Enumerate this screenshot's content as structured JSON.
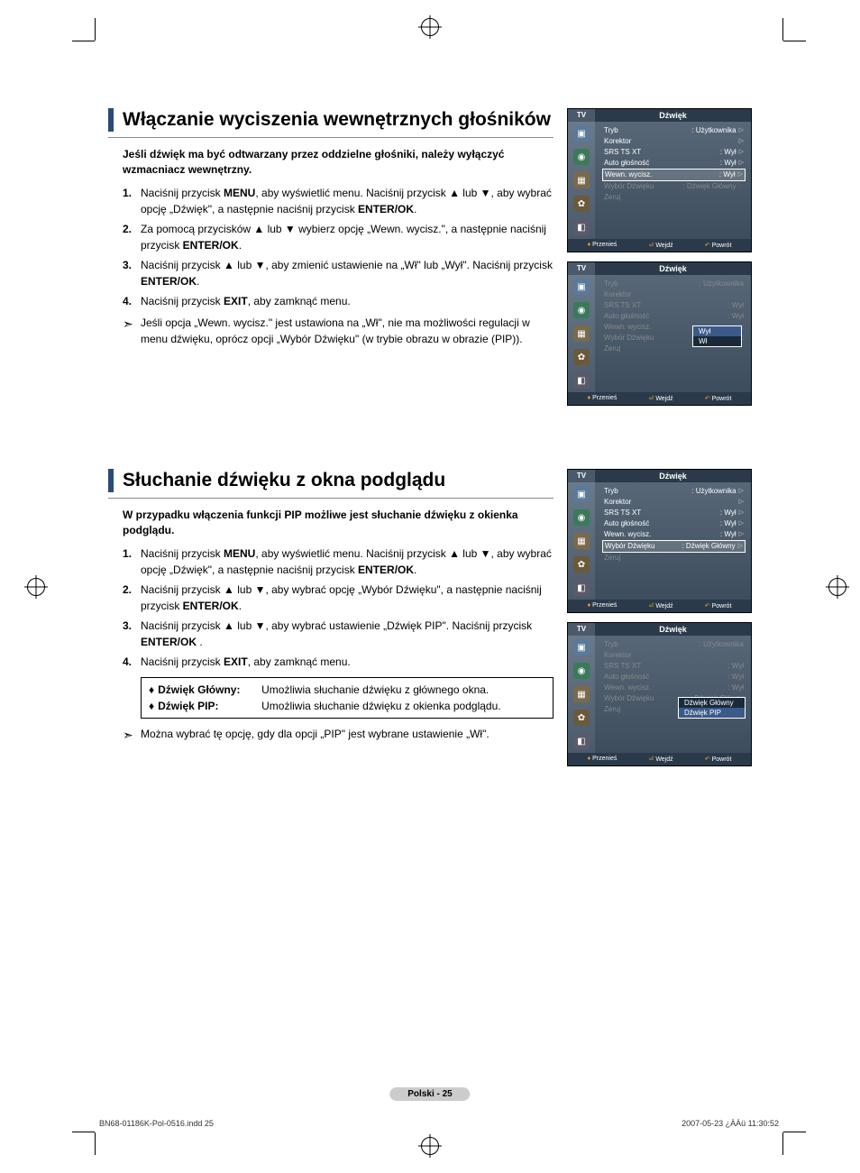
{
  "section1": {
    "heading": "Włączanie wyciszenia wewnętrznych głośników",
    "intro": "Jeśli dźwięk ma być odtwarzany przez oddzielne głośniki, należy wyłączyć wzmacniacz wewnętrzny.",
    "steps": [
      "Naciśnij przycisk <b>MENU</b>, aby wyświetlić menu. Naciśnij przycisk ▲ lub ▼, aby wybrać opcję „Dźwięk\", a następnie naciśnij przycisk <b>ENTER/OK</b>.",
      "Za pomocą przycisków ▲ lub ▼ wybierz opcję „Wewn. wycisz.\", a następnie naciśnij przycisk <b>ENTER/OK</b>.",
      "Naciśnij przycisk ▲ lub ▼, aby zmienić ustawienie na „Wł\" lub „Wył\". Naciśnij przycisk <b>ENTER/OK</b>.",
      "Naciśnij przycisk <b>EXIT</b>, aby zamknąć menu."
    ],
    "note": "Jeśli opcja „Wewn. wycisz.\" jest ustawiona na „Wł\", nie ma możliwości regulacji w menu dźwięku, oprócz opcji „Wybór Dźwięku\" (w trybie obrazu w obrazie (PIP))."
  },
  "section2": {
    "heading": "Słuchanie dźwięku z okna podglądu",
    "intro": "W przypadku włączenia funkcji PIP możliwe jest słuchanie dźwięku z okienka podglądu.",
    "steps": [
      "Naciśnij przycisk <b>MENU</b>, aby wyświetlić menu. Naciśnij przycisk ▲ lub ▼, aby wybrać opcję „Dźwięk\", a następnie naciśnij przycisk <b>ENTER/OK</b>.",
      "Naciśnij przycisk ▲ lub ▼, aby wybrać opcję „Wybór Dźwięku\", a następnie naciśnij przycisk <b>ENTER/OK</b>.",
      "Naciśnij przycisk ▲ lub ▼, aby wybrać ustawienie „Dźwięk PIP\". Naciśnij przycisk <b>ENTER/OK</b> .",
      "Naciśnij przycisk <b>EXIT</b>, aby zamknąć menu."
    ],
    "defs": [
      {
        "label": "Dźwięk Główny:",
        "text": "Umożliwia słuchanie dźwięku z głównego okna."
      },
      {
        "label": "Dźwięk PIP:",
        "text": "Umożliwia słuchanie dźwięku z okienka podglądu."
      }
    ],
    "note": "Można wybrać tę opcję, gdy dla opcji „PIP\" jest wybrane ustawienie „Wł\"."
  },
  "osd": {
    "tv": "TV",
    "title": "Dźwięk",
    "rows": {
      "tryb": {
        "label": "Tryb",
        "value": ": Użytkownika"
      },
      "korektor": {
        "label": "Korektor",
        "value": ""
      },
      "srs": {
        "label": "SRS TS XT",
        "value": ": Wył"
      },
      "auto": {
        "label": "Auto głośność",
        "value": ": Wył"
      },
      "wewn": {
        "label": "Wewn. wycisz.",
        "value": ": Wył"
      },
      "wybor": {
        "label": "Wybór Dźwięku",
        "value": ": Dźwięk Główny"
      },
      "wybor_wl": {
        "value": ": Wł"
      },
      "zeruj": {
        "label": "Zeruj",
        "value": ""
      }
    },
    "footer": {
      "move": "Przenieś",
      "enter": "Wejdź",
      "return": "Powrót"
    },
    "dropdown1": {
      "opt1": "Wył",
      "opt2": "Wł"
    },
    "dropdown2": {
      "opt1": "Dźwięk Główny",
      "opt2": "Dźwięk PIP"
    }
  },
  "pageNum": "Polski - 25",
  "footerLeft": "BN68-01186K-Pol-0516.indd   25",
  "footerRight": "2007-05-23   ¿ÀÀü 11:30:52"
}
